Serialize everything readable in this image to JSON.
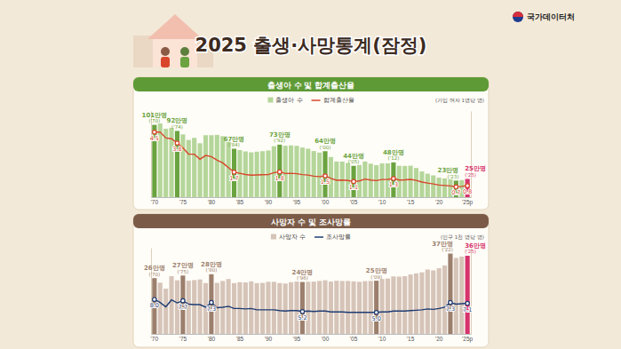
{
  "header": {
    "title": "2025 출생·사망통계(잠정)",
    "source": "국가데이터처"
  },
  "chart_data": [
    {
      "type": "bar",
      "title": "출생아 수 및 합계출산율",
      "subtitle": "(가임 여자 1명당 명)",
      "legend": "top",
      "data_labels": true,
      "tick_labels": "x",
      "categories": [
        "'70",
        null,
        null,
        null,
        null,
        "'75",
        null,
        null,
        null,
        null,
        "'80",
        null,
        null,
        null,
        null,
        "'85",
        null,
        null,
        null,
        null,
        "'90",
        null,
        null,
        null,
        null,
        "'95",
        null,
        null,
        null,
        null,
        "'00",
        null,
        null,
        null,
        null,
        "'05",
        null,
        null,
        null,
        null,
        "'10",
        null,
        null,
        null,
        null,
        "'15",
        null,
        null,
        null,
        null,
        "'20",
        null,
        null,
        null,
        null,
        "'25p"
      ],
      "ylim": [
        0,
        120
      ],
      "y2lim": [
        0,
        6
      ],
      "series": [
        {
          "name": "출생아 수",
          "type": "bar",
          "color": "#b5d69a",
          "colors": [
            "#6aa33f",
            "#b5d69a",
            "#b5d69a",
            "#b5d69a",
            "#6aa33f",
            "#b5d69a",
            "#b5d69a",
            "#b5d69a",
            "#b5d69a",
            "#b5d69a",
            "#b5d69a",
            "#b5d69a",
            "#b5d69a",
            "#b5d69a",
            "#6aa33f",
            "#b5d69a",
            "#b5d69a",
            "#b5d69a",
            "#b5d69a",
            "#b5d69a",
            "#b5d69a",
            "#b5d69a",
            "#6aa33f",
            "#b5d69a",
            "#b5d69a",
            "#b5d69a",
            "#b5d69a",
            "#b5d69a",
            "#b5d69a",
            "#b5d69a",
            "#6aa33f",
            "#b5d69a",
            "#b5d69a",
            "#b5d69a",
            "#b5d69a",
            "#6aa33f",
            "#b5d69a",
            "#b5d69a",
            "#b5d69a",
            "#b5d69a",
            "#b5d69a",
            "#b5d69a",
            "#6aa33f",
            "#b5d69a",
            "#b5d69a",
            "#b5d69a",
            "#b5d69a",
            "#b5d69a",
            "#b5d69a",
            "#b5d69a",
            "#b5d69a",
            "#b5d69a",
            "#b5d69a",
            "#6aa33f",
            "#b5d69a",
            "#d6336c"
          ],
          "values": [
            100.7,
            102.5,
            95.3,
            96.6,
            92.2,
            87.5,
            79.7,
            82.6,
            75.1,
            86.3,
            86.3,
            86.7,
            84.9,
            77.0,
            67.4,
            65.6,
            63.7,
            62.4,
            63.4,
            64.0,
            65.0,
            71.0,
            73.1,
            71.6,
            72.1,
            71.5,
            69.1,
            67.5,
            64.2,
            62.1,
            64.0,
            55.9,
            49.7,
            49.5,
            47.6,
            43.6,
            44.8,
            49.7,
            46.6,
            44.5,
            47.0,
            47.1,
            48.4,
            43.7,
            43.5,
            43.8,
            40.6,
            35.8,
            32.7,
            30.3,
            27.2,
            26.1,
            24.9,
            23.0,
            23.8,
            25.4
          ],
          "value_labels": [
            "101만명",
            null,
            null,
            null,
            "92만명",
            null,
            null,
            null,
            null,
            null,
            null,
            null,
            null,
            null,
            "67만명",
            null,
            null,
            null,
            null,
            null,
            null,
            null,
            "73만명",
            null,
            null,
            null,
            null,
            null,
            null,
            null,
            "64만명",
            null,
            null,
            null,
            null,
            "44만명",
            null,
            null,
            null,
            null,
            null,
            null,
            "48만명",
            null,
            null,
            null,
            null,
            null,
            null,
            null,
            null,
            null,
            null,
            "23만명",
            null,
            "25만명"
          ],
          "value_label_notes": [
            "('70)",
            null,
            null,
            null,
            "('74)",
            null,
            null,
            null,
            null,
            null,
            null,
            null,
            null,
            null,
            "('84)",
            null,
            null,
            null,
            null,
            null,
            null,
            null,
            "('92)",
            null,
            null,
            null,
            null,
            null,
            null,
            null,
            "('00)",
            null,
            null,
            null,
            null,
            "('05)",
            null,
            null,
            null,
            null,
            null,
            null,
            "('12)",
            null,
            null,
            null,
            null,
            null,
            null,
            null,
            null,
            null,
            null,
            "('23)",
            null,
            "('25)"
          ]
        },
        {
          "name": "합계출산율",
          "type": "line",
          "axis": "y2",
          "color": "#d9452b",
          "marker": "circle",
          "values": [
            4.53,
            4.54,
            4.12,
            4.07,
            3.77,
            3.43,
            3.0,
            2.99,
            2.64,
            2.9,
            2.82,
            2.57,
            2.39,
            2.06,
            1.74,
            1.66,
            1.58,
            1.53,
            1.55,
            1.56,
            1.57,
            1.71,
            1.76,
            1.65,
            1.66,
            1.63,
            1.57,
            1.54,
            1.46,
            1.43,
            1.48,
            1.31,
            1.18,
            1.19,
            1.16,
            1.09,
            1.13,
            1.26,
            1.19,
            1.15,
            1.23,
            1.24,
            1.3,
            1.19,
            1.21,
            1.24,
            1.17,
            1.05,
            0.98,
            0.92,
            0.84,
            0.81,
            0.78,
            0.72,
            0.75,
            0.8
          ],
          "value_labels": [
            "4.5",
            null,
            null,
            null,
            "3.8",
            null,
            null,
            null,
            null,
            null,
            null,
            null,
            null,
            null,
            "1.7",
            null,
            null,
            null,
            null,
            null,
            null,
            null,
            "1.8",
            null,
            null,
            null,
            null,
            null,
            null,
            null,
            "1.5",
            null,
            null,
            null,
            null,
            "1.1",
            null,
            null,
            null,
            null,
            null,
            null,
            "1.3",
            null,
            null,
            null,
            null,
            null,
            null,
            null,
            null,
            null,
            null,
            "0.7",
            null,
            "0.8"
          ]
        }
      ]
    },
    {
      "type": "bar",
      "title": "사망자 수 및 조사망률",
      "subtitle": "(인구 1천 명당 명)",
      "legend": "top",
      "data_labels": true,
      "tick_labels": "x",
      "categories": [
        "'70",
        null,
        null,
        null,
        null,
        "'75",
        null,
        null,
        null,
        null,
        "'80",
        null,
        null,
        null,
        null,
        "'85",
        null,
        null,
        null,
        null,
        "'90",
        null,
        null,
        null,
        null,
        "'95",
        null,
        null,
        null,
        null,
        "'00",
        null,
        null,
        null,
        null,
        "'05",
        null,
        null,
        null,
        null,
        "'10",
        null,
        null,
        null,
        null,
        "'15",
        null,
        null,
        null,
        null,
        "'20",
        null,
        null,
        null,
        null,
        "'25p"
      ],
      "ylim": [
        0,
        40
      ],
      "y2lim": [
        0,
        20
      ],
      "series": [
        {
          "name": "사망자 수",
          "type": "bar",
          "color": "#d6c4b8",
          "colors": [
            "#9c7f6d",
            "#d6c4b8",
            "#d6c4b8",
            "#d6c4b8",
            "#d6c4b8",
            "#9c7f6d",
            "#d6c4b8",
            "#d6c4b8",
            "#d6c4b8",
            "#d6c4b8",
            "#9c7f6d",
            "#d6c4b8",
            "#d6c4b8",
            "#d6c4b8",
            "#d6c4b8",
            "#d6c4b8",
            "#d6c4b8",
            "#d6c4b8",
            "#d6c4b8",
            "#d6c4b8",
            "#d6c4b8",
            "#d6c4b8",
            "#d6c4b8",
            "#d6c4b8",
            "#d6c4b8",
            "#d6c4b8",
            "#9c7f6d",
            "#d6c4b8",
            "#d6c4b8",
            "#d6c4b8",
            "#d6c4b8",
            "#d6c4b8",
            "#d6c4b8",
            "#d6c4b8",
            "#d6c4b8",
            "#d6c4b8",
            "#d6c4b8",
            "#d6c4b8",
            "#d6c4b8",
            "#9c7f6d",
            "#d6c4b8",
            "#d6c4b8",
            "#d6c4b8",
            "#d6c4b8",
            "#d6c4b8",
            "#d6c4b8",
            "#d6c4b8",
            "#d6c4b8",
            "#d6c4b8",
            "#d6c4b8",
            "#d6c4b8",
            "#d6c4b8",
            "#9c7f6d",
            "#d6c4b8",
            "#d6c4b8",
            "#d6336c"
          ],
          "values": [
            25.9,
            23.8,
            21.0,
            26.8,
            24.9,
            27.1,
            24.7,
            25.0,
            25.3,
            23.6,
            27.7,
            23.7,
            24.6,
            25.5,
            23.6,
            24.0,
            23.9,
            24.4,
            23.6,
            23.7,
            24.2,
            24.2,
            23.6,
            23.4,
            24.0,
            24.3,
            24.1,
            24.2,
            24.3,
            24.6,
            24.9,
            24.3,
            24.7,
            24.6,
            24.6,
            24.4,
            24.2,
            24.5,
            24.6,
            24.7,
            25.5,
            25.7,
            26.7,
            26.6,
            26.8,
            27.6,
            28.1,
            28.6,
            29.9,
            29.5,
            30.5,
            31.8,
            37.3,
            35.3,
            35.9,
            36.3
          ],
          "value_labels": [
            "26만명",
            null,
            null,
            null,
            null,
            "27만명",
            null,
            null,
            null,
            null,
            "28만명",
            null,
            null,
            null,
            null,
            null,
            null,
            null,
            null,
            null,
            null,
            null,
            null,
            null,
            null,
            null,
            "24만명",
            null,
            null,
            null,
            null,
            null,
            null,
            null,
            null,
            null,
            null,
            null,
            null,
            "25만명",
            null,
            null,
            null,
            null,
            null,
            null,
            null,
            null,
            null,
            null,
            null,
            null,
            "37만명",
            null,
            null,
            "36만명"
          ],
          "value_label_notes": [
            "('70)",
            null,
            null,
            null,
            null,
            "('75)",
            null,
            null,
            null,
            null,
            "('80)",
            null,
            null,
            null,
            null,
            null,
            null,
            null,
            null,
            null,
            null,
            null,
            null,
            null,
            null,
            null,
            "('96)",
            null,
            null,
            null,
            null,
            null,
            null,
            null,
            null,
            null,
            null,
            null,
            null,
            "('09)",
            null,
            null,
            null,
            null,
            null,
            null,
            null,
            null,
            null,
            null,
            null,
            null,
            "('22)",
            null,
            null,
            "('25)"
          ]
        },
        {
          "name": "조사망률",
          "type": "line",
          "axis": "y2",
          "color": "#1f3c73",
          "marker": "circle",
          "values": [
            8.0,
            7.3,
            6.3,
            7.9,
            7.2,
            7.7,
            6.9,
            6.8,
            6.8,
            6.2,
            7.3,
            6.1,
            6.2,
            6.4,
            5.9,
            5.9,
            5.8,
            5.9,
            5.6,
            5.6,
            5.6,
            5.6,
            5.4,
            5.3,
            5.4,
            5.4,
            5.2,
            5.3,
            5.2,
            5.3,
            5.3,
            5.1,
            5.1,
            5.1,
            5.0,
            5.0,
            5.0,
            5.0,
            5.0,
            5.0,
            5.1,
            5.1,
            5.3,
            5.3,
            5.3,
            5.4,
            5.5,
            5.6,
            5.8,
            5.7,
            5.9,
            6.2,
            7.3,
            6.9,
            7.0,
            7.1
          ],
          "value_labels": [
            "8.0",
            null,
            null,
            null,
            null,
            "7.7",
            null,
            null,
            null,
            null,
            "7.3",
            null,
            null,
            null,
            null,
            null,
            null,
            null,
            null,
            null,
            null,
            null,
            null,
            null,
            null,
            null,
            "5.2",
            null,
            null,
            null,
            null,
            null,
            null,
            null,
            null,
            null,
            null,
            null,
            null,
            "5.0",
            null,
            null,
            null,
            null,
            null,
            null,
            null,
            null,
            null,
            null,
            null,
            null,
            "7.3",
            null,
            null,
            "7.1"
          ]
        }
      ]
    }
  ]
}
